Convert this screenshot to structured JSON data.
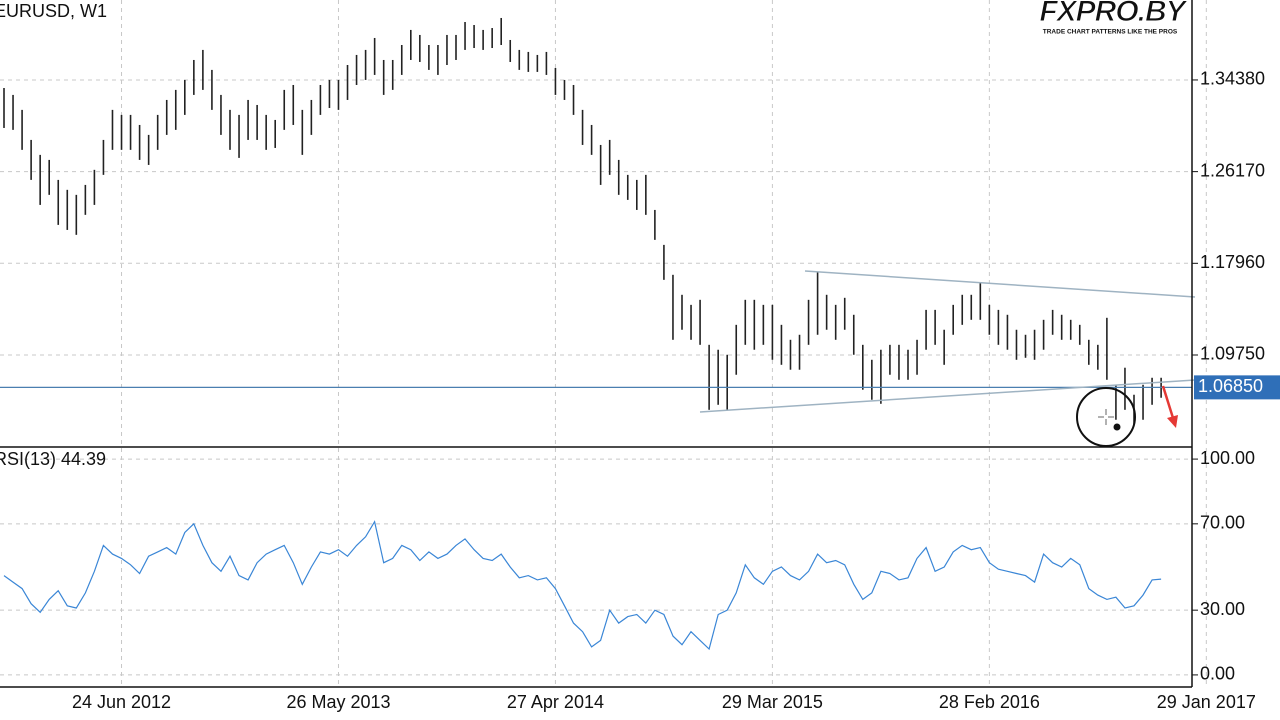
{
  "logo": {
    "name": "FXPRO.BY",
    "tagline": "TRADE CHART PATTERNS LIKE THE PROS"
  },
  "chart_data": [
    {
      "type": "ohlc",
      "title": "EURUSD, W1",
      "categories": [
        null,
        null,
        null,
        null,
        null,
        null,
        null,
        null,
        null,
        null,
        null,
        null,
        null,
        "24 Jun 2012",
        null,
        null,
        null,
        null,
        null,
        null,
        null,
        null,
        null,
        null,
        null,
        null,
        null,
        null,
        null,
        null,
        null,
        null,
        null,
        null,
        null,
        null,
        null,
        "26 May 2013",
        null,
        null,
        null,
        null,
        null,
        null,
        null,
        null,
        null,
        null,
        null,
        null,
        null,
        null,
        null,
        null,
        null,
        null,
        null,
        null,
        null,
        null,
        null,
        "27 Apr 2014",
        null,
        null,
        null,
        null,
        null,
        null,
        null,
        null,
        null,
        null,
        null,
        null,
        null,
        null,
        null,
        null,
        null,
        null,
        null,
        null,
        null,
        null,
        null,
        "29 Mar 2015",
        null,
        null,
        null,
        null,
        null,
        null,
        null,
        null,
        null,
        null,
        null,
        null,
        null,
        null,
        null,
        null,
        null,
        null,
        null,
        null,
        null,
        null,
        null,
        "28 Feb 2016",
        null,
        null,
        null,
        null,
        null,
        null,
        null,
        null,
        null,
        null,
        null,
        null,
        null,
        null,
        null,
        null,
        null,
        null,
        null,
        null,
        null,
        null,
        null,
        "29 Jan 2017"
      ],
      "high": [
        1.3366,
        1.3304,
        1.317,
        1.2901,
        1.2767,
        1.2722,
        1.2543,
        1.2454,
        1.2409,
        1.2498,
        1.2633,
        1.2901,
        1.317,
        1.3125,
        1.3125,
        1.3035,
        1.2946,
        1.3125,
        1.3259,
        1.3349,
        1.3438,
        1.3617,
        1.3707,
        1.3528,
        1.3304,
        1.317,
        1.3125,
        1.3259,
        1.3214,
        1.3125,
        1.308,
        1.3349,
        1.3393,
        1.317,
        1.3259,
        1.3393,
        1.3438,
        1.3438,
        1.3572,
        1.3662,
        1.3707,
        1.3814,
        1.3617,
        1.3617,
        1.3751,
        1.3886,
        1.3841,
        1.3751,
        1.3751,
        1.3841,
        1.3841,
        1.3957,
        1.393,
        1.3886,
        1.3903,
        1.3993,
        1.3796,
        1.3707,
        1.3689,
        1.3662,
        1.3689,
        1.3545,
        1.3438,
        1.3393,
        1.317,
        1.3035,
        1.2856,
        1.2901,
        1.2722,
        1.2588,
        1.2543,
        1.2588,
        1.2274,
        1.1961,
        1.1693,
        1.1514,
        1.1424,
        1.1469,
        1.1066,
        1.1022,
        1.0977,
        1.1245,
        1.1469,
        1.1469,
        1.1424,
        1.1424,
        1.1245,
        1.1111,
        1.1156,
        1.1469,
        1.172,
        1.1514,
        1.1424,
        1.1487,
        1.1335,
        1.1066,
        1.0932,
        1.1022,
        1.1066,
        1.1066,
        1.1022,
        1.1111,
        1.1379,
        1.1379,
        1.1201,
        1.1424,
        1.1514,
        1.1514,
        1.1621,
        1.1424,
        1.1379,
        1.1335,
        1.1201,
        1.1156,
        1.1201,
        1.129,
        1.1379,
        1.1335,
        1.129,
        1.1245,
        1.1111,
        1.1066,
        1.1308,
        1.0708,
        1.0861,
        1.0619,
        1.0708,
        1.0771,
        1.0771,
        null,
        null,
        null,
        null,
        null
      ],
      "low": [
        1.3008,
        1.2991,
        1.2812,
        1.2543,
        1.2319,
        1.2409,
        1.214,
        1.2095,
        1.2051,
        1.223,
        1.2319,
        1.2588,
        1.2812,
        1.2812,
        1.2812,
        1.2722,
        1.2677,
        1.2812,
        1.2946,
        1.2991,
        1.3125,
        1.3304,
        1.3349,
        1.317,
        1.2946,
        1.2812,
        1.274,
        1.2901,
        1.2901,
        1.2812,
        1.2829,
        1.2991,
        1.3035,
        1.2767,
        1.2946,
        1.3125,
        1.3187,
        1.317,
        1.3259,
        1.3393,
        1.3438,
        1.3483,
        1.3304,
        1.3349,
        1.3483,
        1.3617,
        1.3599,
        1.3528,
        1.3483,
        1.3572,
        1.3617,
        1.3707,
        1.3724,
        1.3707,
        1.3724,
        1.3751,
        1.3599,
        1.3528,
        1.351,
        1.351,
        1.3483,
        1.3304,
        1.3259,
        1.3125,
        1.2856,
        1.2767,
        1.2498,
        1.2588,
        1.2409,
        1.2364,
        1.2274,
        1.223,
        1.2006,
        1.1648,
        1.1111,
        1.1201,
        1.1111,
        1.1066,
        1.0484,
        1.0529,
        1.0484,
        1.0798,
        1.1066,
        1.1022,
        1.1066,
        1.0932,
        1.0887,
        1.0843,
        1.0843,
        1.1066,
        1.1156,
        1.1201,
        1.1111,
        1.1201,
        1.0977,
        1.0664,
        1.0574,
        1.0538,
        1.0798,
        1.0753,
        1.0753,
        1.0798,
        1.1022,
        1.1066,
        1.0887,
        1.1156,
        1.1245,
        1.129,
        1.129,
        1.1156,
        1.1066,
        1.1022,
        1.0932,
        1.095,
        1.0932,
        1.1022,
        1.1156,
        1.1111,
        1.1111,
        1.1066,
        1.0887,
        1.0843,
        1.0753,
        1.0395,
        1.0484,
        1.035,
        1.0395,
        1.0529,
        1.0592,
        null,
        null,
        null,
        null,
        null
      ],
      "color": "#222222",
      "ylim": [
        1.0151,
        1.4154
      ],
      "yticks": [
        {
          "value": 1.3438,
          "label": "1.34380"
        },
        {
          "value": 1.2617,
          "label": "1.26170"
        },
        {
          "value": 1.1796,
          "label": "1.17960"
        },
        {
          "value": 1.0975,
          "label": "1.09750"
        }
      ],
      "current_price": {
        "value": 1.0685,
        "label": "1.06850"
      },
      "grid": true
    },
    {
      "type": "line",
      "title": "RSI(13) 44.39",
      "series": [
        {
          "color": "#3a86d6",
          "values": [
            46,
            43,
            40,
            33,
            29,
            35,
            39,
            32,
            31,
            38,
            48,
            60,
            56,
            54,
            51,
            47,
            55,
            57,
            59,
            56,
            66,
            70,
            60,
            52,
            48,
            55,
            46,
            44,
            52,
            56,
            58,
            60,
            52,
            42,
            50,
            57,
            56,
            58,
            55,
            60,
            64,
            71,
            52,
            54,
            60,
            58,
            53,
            57,
            54,
            56,
            60,
            63,
            58,
            54,
            53,
            56,
            50,
            45,
            46,
            44,
            45,
            40,
            32,
            24,
            20,
            13,
            16,
            30,
            24,
            27,
            28,
            24,
            30,
            28,
            18,
            14,
            20,
            16,
            12,
            28,
            30,
            38,
            51,
            45,
            42,
            48,
            50,
            46,
            44,
            48,
            56,
            52,
            53,
            51,
            42,
            35,
            38,
            48,
            47,
            44,
            45,
            54,
            59,
            48,
            50,
            57,
            60,
            58,
            59,
            52,
            49,
            48,
            47,
            46,
            43,
            56,
            52,
            50,
            54,
            51,
            40,
            37,
            35,
            36,
            31,
            32,
            37,
            44,
            44.39,
            null,
            null,
            null,
            null,
            null
          ]
        }
      ],
      "ylim": [
        -5.6,
        105.6
      ],
      "yticks": [
        {
          "value": 100,
          "label": "100.00"
        },
        {
          "value": 70,
          "label": "70.00"
        },
        {
          "value": 30,
          "label": "30.00"
        },
        {
          "value": 0,
          "label": "0.00"
        }
      ],
      "grid": true
    }
  ]
}
